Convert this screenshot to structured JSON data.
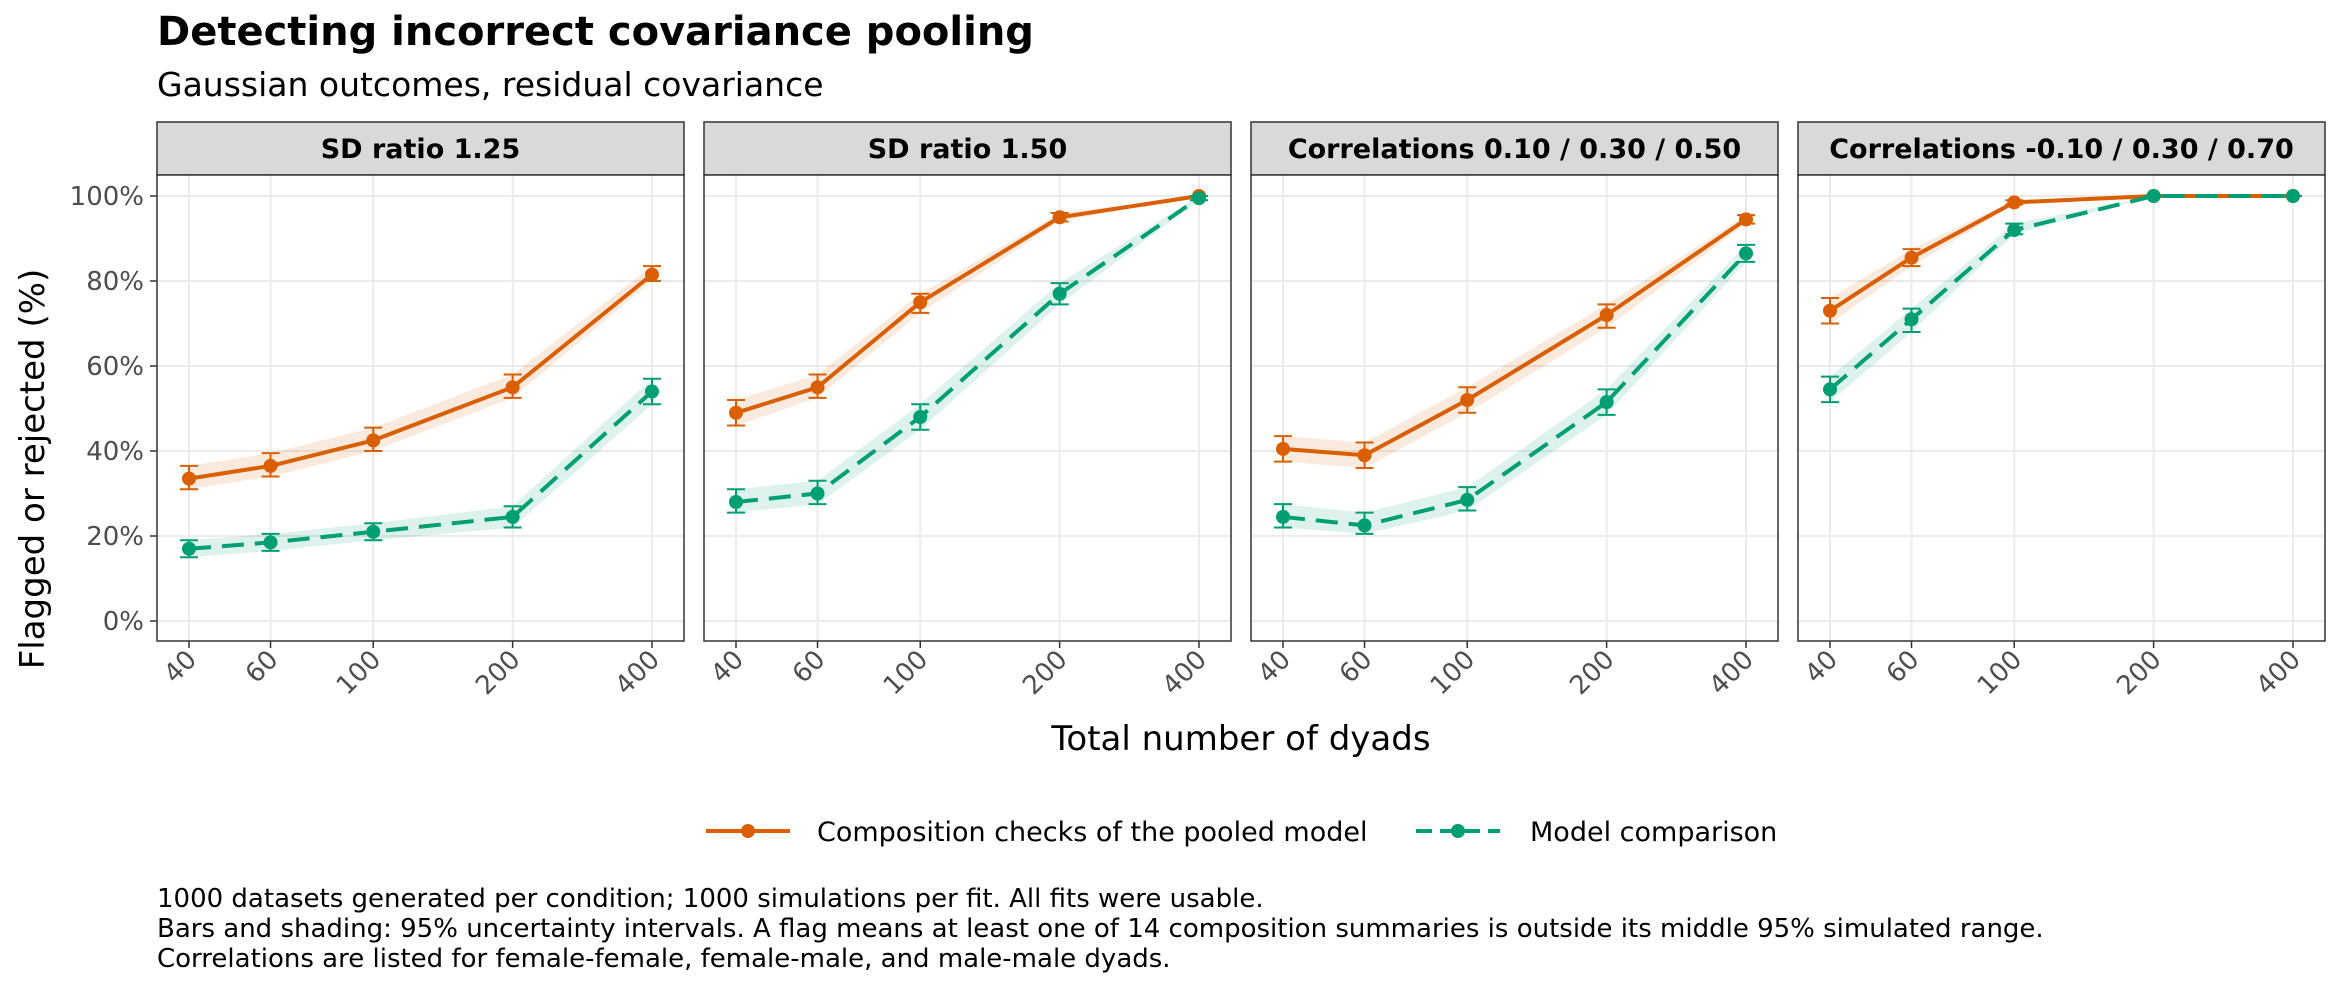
{
  "chart_data": {
    "type": "line",
    "title": "Detecting incorrect covariance pooling",
    "subtitle": "Gaussian outcomes, residual covariance",
    "xlabel": "Total number of dyads",
    "ylabel": "Flagged or rejected (%)",
    "x_scale": "log",
    "x": [
      40,
      60,
      100,
      200,
      400
    ],
    "x_tick_labels": [
      "40",
      "60",
      "100",
      "200",
      "400"
    ],
    "ylim": [
      0,
      100
    ],
    "y_ticks": [
      0,
      20,
      40,
      60,
      80,
      100
    ],
    "y_tick_labels": [
      "0%",
      "20%",
      "40%",
      "60%",
      "80%",
      "100%"
    ],
    "grid": true,
    "legend_position": "bottom",
    "series_styles": [
      {
        "name": "Composition checks of the pooled model",
        "color": "#d95f02",
        "dash": "solid"
      },
      {
        "name": "Model comparison",
        "color": "#009e73",
        "dash": "dashed"
      }
    ],
    "panels": [
      {
        "strip": "SD ratio 1.25",
        "series": [
          {
            "name": "Composition checks of the pooled model",
            "values": [
              33.5,
              36.5,
              42.5,
              55,
              81.5
            ],
            "ci_low": [
              31,
              34,
              40,
              52.5,
              80
            ],
            "ci_high": [
              36.5,
              39.5,
              45.5,
              58,
              83.5
            ]
          },
          {
            "name": "Model comparison",
            "values": [
              17,
              18.5,
              21,
              24.5,
              54
            ],
            "ci_low": [
              15,
              16.5,
              19,
              22,
              51
            ],
            "ci_high": [
              19,
              20.5,
              23,
              27,
              57
            ]
          }
        ]
      },
      {
        "strip": "SD ratio 1.50",
        "series": [
          {
            "name": "Composition checks of the pooled model",
            "values": [
              49,
              55,
              75,
              95,
              100
            ],
            "ci_low": [
              46,
              52.5,
              72.5,
              94,
              100
            ],
            "ci_high": [
              52,
              58,
              77,
              96,
              100
            ]
          },
          {
            "name": "Model comparison",
            "values": [
              28,
              30,
              48,
              77,
              99.5
            ],
            "ci_low": [
              25.5,
              27.5,
              45,
              74.5,
              99
            ],
            "ci_high": [
              31,
              33,
              51,
              79.5,
              100
            ]
          }
        ]
      },
      {
        "strip": "Correlations 0.10 / 0.30 / 0.50",
        "series": [
          {
            "name": "Composition checks of the pooled model",
            "values": [
              40.5,
              39,
              52,
              72,
              94.5
            ],
            "ci_low": [
              37.5,
              36,
              49,
              69,
              93.5
            ],
            "ci_high": [
              43.5,
              42,
              55,
              74.5,
              95.5
            ]
          },
          {
            "name": "Model comparison",
            "values": [
              24.5,
              22.5,
              28.5,
              51.5,
              86.5
            ],
            "ci_low": [
              22,
              20.5,
              26,
              48.5,
              84.5
            ],
            "ci_high": [
              27.5,
              25.5,
              31.5,
              54.5,
              88.5
            ]
          }
        ]
      },
      {
        "strip": "Correlations -0.10 / 0.30 / 0.70",
        "series": [
          {
            "name": "Composition checks of the pooled model",
            "values": [
              73,
              85.5,
              98.5,
              100,
              100
            ],
            "ci_low": [
              70,
              83.5,
              98,
              100,
              100
            ],
            "ci_high": [
              76,
              87.5,
              99,
              100,
              100
            ]
          },
          {
            "name": "Model comparison",
            "values": [
              54.5,
              71,
              92,
              100,
              100
            ],
            "ci_low": [
              51.5,
              68,
              91,
              100,
              100
            ],
            "ci_high": [
              57.5,
              73.5,
              93.5,
              100,
              100
            ]
          }
        ]
      }
    ],
    "caption": [
      "1000 datasets generated per condition; 1000 simulations per fit. All fits were usable.",
      "Bars and shading: 95% uncertainty intervals. A flag means at least one of 14 composition summaries is outside its middle 95% simulated range.",
      "Correlations are listed for female-female, female-male, and male-male dyads."
    ]
  }
}
